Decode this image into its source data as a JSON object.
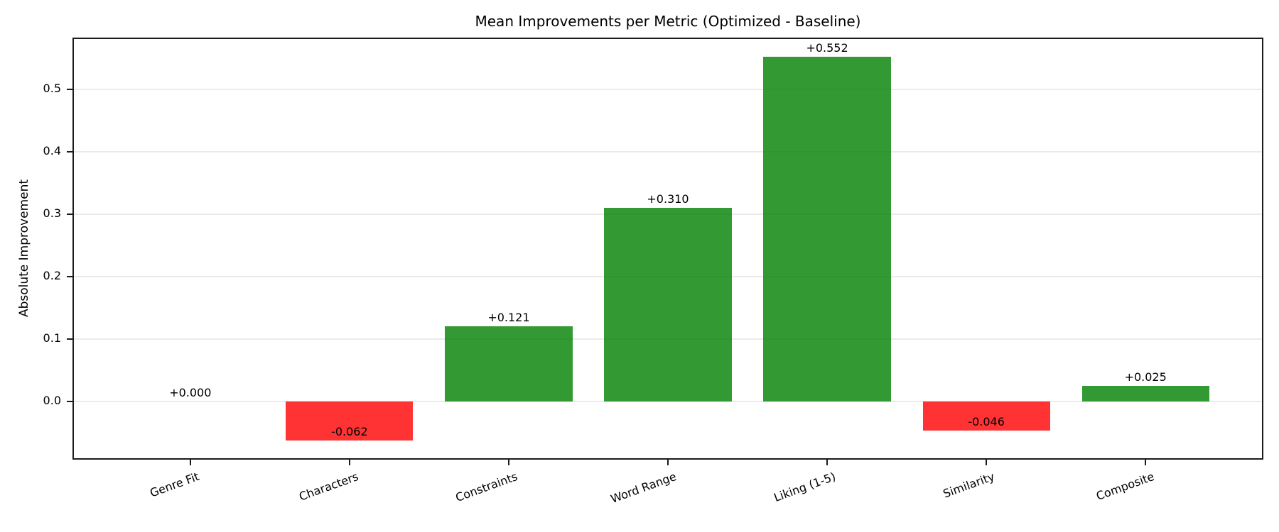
{
  "chart_data": {
    "type": "bar",
    "title": "Mean Improvements per Metric (Optimized - Baseline)",
    "xlabel": "",
    "ylabel": "Absolute Improvement",
    "categories": [
      "Genre Fit",
      "Characters",
      "Constraints",
      "Word Range",
      "Liking (1-5)",
      "Similarity",
      "Composite"
    ],
    "values": [
      0.0,
      -0.062,
      0.121,
      0.31,
      0.552,
      -0.046,
      0.025
    ],
    "bar_labels": [
      "+0.000",
      "-0.062",
      "+0.121",
      "+0.310",
      "+0.552",
      "-0.046",
      "+0.025"
    ],
    "yticks": [
      0.0,
      0.1,
      0.2,
      0.3,
      0.4,
      0.5
    ],
    "ytick_labels": [
      "0.0",
      "0.1",
      "0.2",
      "0.3",
      "0.4",
      "0.5"
    ],
    "ylim": [
      -0.093,
      0.583
    ],
    "grid": true,
    "legend": false,
    "colors": {
      "positive_bar": "#008000",
      "negative_bar": "#ff0000",
      "bar_opacity": 0.8,
      "grid_line": "#ebebeb",
      "axis": "#1b1b1b",
      "text": "#000000"
    }
  }
}
